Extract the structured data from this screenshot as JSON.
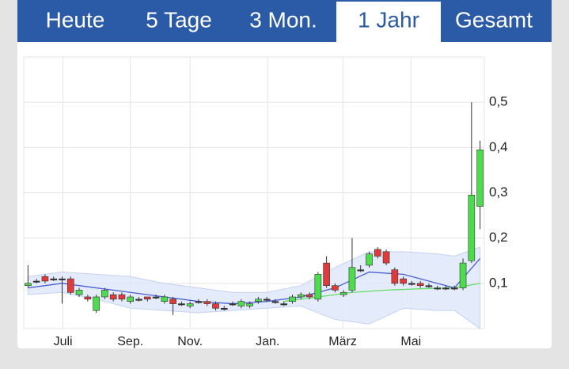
{
  "tabs": [
    "Heute",
    "5 Tage",
    "3 Mon.",
    "1 Jahr",
    "Gesamt"
  ],
  "selected_tab_index": 3,
  "chart_data": {
    "type": "candlestick",
    "x": [
      0,
      1,
      2,
      3,
      4,
      5,
      6,
      7,
      8,
      9,
      10,
      11,
      12,
      13,
      14,
      15,
      16,
      17,
      18,
      19,
      20,
      21,
      22,
      23,
      24,
      25,
      26,
      27,
      28,
      29,
      30,
      31,
      32,
      33,
      34,
      35,
      36,
      37,
      38,
      39,
      40,
      41,
      42,
      43,
      44,
      45,
      46,
      47,
      48,
      49,
      50,
      51,
      52,
      53
    ],
    "open": [
      0.095,
      0.105,
      0.115,
      0.11,
      0.11,
      0.11,
      0.075,
      0.07,
      0.04,
      0.07,
      0.075,
      0.075,
      0.06,
      0.065,
      0.07,
      0.07,
      0.06,
      0.065,
      0.055,
      0.05,
      0.06,
      0.06,
      0.055,
      0.045,
      0.055,
      0.05,
      0.05,
      0.06,
      0.065,
      0.06,
      0.055,
      0.06,
      0.07,
      0.075,
      0.065,
      0.145,
      0.095,
      0.075,
      0.085,
      0.13,
      0.14,
      0.175,
      0.17,
      0.13,
      0.11,
      0.1,
      0.1,
      0.095,
      0.09,
      0.09,
      0.09,
      0.09,
      0.15,
      0.27
    ],
    "high": [
      0.14,
      0.11,
      0.12,
      0.115,
      0.115,
      0.115,
      0.09,
      0.075,
      0.075,
      0.09,
      0.08,
      0.08,
      0.075,
      0.07,
      0.07,
      0.075,
      0.075,
      0.07,
      0.06,
      0.06,
      0.065,
      0.065,
      0.06,
      0.05,
      0.06,
      0.065,
      0.06,
      0.07,
      0.07,
      0.065,
      0.06,
      0.075,
      0.08,
      0.08,
      0.125,
      0.16,
      0.1,
      0.085,
      0.2,
      0.14,
      0.17,
      0.18,
      0.175,
      0.135,
      0.115,
      0.105,
      0.105,
      0.1,
      0.095,
      0.095,
      0.095,
      0.155,
      0.5,
      0.415
    ],
    "low": [
      0.09,
      0.1,
      0.1,
      0.105,
      0.055,
      0.075,
      0.07,
      0.06,
      0.035,
      0.065,
      0.06,
      0.06,
      0.055,
      0.06,
      0.06,
      0.065,
      0.055,
      0.03,
      0.05,
      0.045,
      0.055,
      0.05,
      0.04,
      0.04,
      0.05,
      0.045,
      0.045,
      0.055,
      0.06,
      0.055,
      0.05,
      0.055,
      0.065,
      0.065,
      0.06,
      0.09,
      0.08,
      0.07,
      0.08,
      0.125,
      0.135,
      0.155,
      0.14,
      0.095,
      0.095,
      0.095,
      0.09,
      0.09,
      0.085,
      0.085,
      0.085,
      0.085,
      0.145,
      0.22
    ],
    "close": [
      0.1,
      0.105,
      0.105,
      0.11,
      0.11,
      0.08,
      0.085,
      0.065,
      0.07,
      0.085,
      0.065,
      0.065,
      0.07,
      0.065,
      0.065,
      0.07,
      0.07,
      0.055,
      0.055,
      0.055,
      0.06,
      0.055,
      0.045,
      0.045,
      0.055,
      0.06,
      0.055,
      0.065,
      0.065,
      0.06,
      0.055,
      0.07,
      0.075,
      0.07,
      0.12,
      0.095,
      0.085,
      0.08,
      0.135,
      0.13,
      0.165,
      0.16,
      0.145,
      0.1,
      0.1,
      0.1,
      0.095,
      0.095,
      0.09,
      0.09,
      0.09,
      0.145,
      0.295,
      0.395
    ],
    "up_color": "#4cdc4c",
    "down_color": "#e03a3a",
    "flat_color": "#333333",
    "bands": {
      "x": [
        0,
        4,
        8,
        12,
        16,
        20,
        24,
        28,
        32,
        36,
        40,
        44,
        48,
        50,
        53
      ],
      "upper": [
        0.115,
        0.125,
        0.12,
        0.115,
        0.1,
        0.09,
        0.08,
        0.08,
        0.095,
        0.135,
        0.17,
        0.17,
        0.165,
        0.16,
        0.18
      ],
      "middle": [
        0.09,
        0.1,
        0.09,
        0.08,
        0.07,
        0.06,
        0.055,
        0.06,
        0.07,
        0.09,
        0.125,
        0.12,
        0.1,
        0.09,
        0.155
      ],
      "lower": [
        0.075,
        0.08,
        0.065,
        0.045,
        0.04,
        0.035,
        0.04,
        0.045,
        0.05,
        0.02,
        0.01,
        0.045,
        0.04,
        0.04,
        0.0
      ],
      "fill": "#dde6fa",
      "line_color": "#4a5fd0"
    },
    "average": {
      "x": [
        30,
        34,
        38,
        42,
        46,
        50,
        53
      ],
      "values": [
        0.06,
        0.07,
        0.08,
        0.085,
        0.088,
        0.09,
        0.1
      ],
      "color": "#66dd66"
    },
    "xlim": [
      -0.5,
      53.5
    ],
    "xticks": [
      {
        "value": 4.1,
        "label": "Juli"
      },
      {
        "value": 12,
        "label": "Sep."
      },
      {
        "value": 19,
        "label": "Nov."
      },
      {
        "value": 28.1,
        "label": "Jan."
      },
      {
        "value": 36.9,
        "label": "März"
      },
      {
        "value": 44.9,
        "label": "Mai"
      }
    ],
    "ylim": [
      0,
      0.6
    ],
    "yticks": [
      {
        "value": 0.1,
        "label": "0,1"
      },
      {
        "value": 0.2,
        "label": "0,2"
      },
      {
        "value": 0.3,
        "label": "0,3"
      },
      {
        "value": 0.4,
        "label": "0,4"
      },
      {
        "value": 0.5,
        "label": "0,5"
      }
    ],
    "grid": true
  }
}
